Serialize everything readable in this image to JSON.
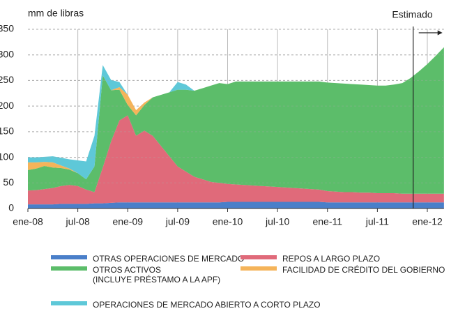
{
  "chart_data": {
    "type": "stacked_area",
    "y_label": "mm de libras",
    "categories": [
      "ene-08",
      null,
      null,
      null,
      null,
      null,
      "jul-08",
      null,
      null,
      null,
      null,
      null,
      "ene-09",
      null,
      null,
      null,
      null,
      null,
      "jul-09",
      null,
      null,
      null,
      null,
      null,
      "ene-10",
      null,
      null,
      null,
      null,
      null,
      "jul-10",
      null,
      null,
      null,
      null,
      null,
      "ene-11",
      null,
      null,
      null,
      null,
      null,
      "jul-11",
      null,
      null,
      null,
      null,
      null,
      "ene-12",
      null,
      null
    ],
    "ylim": [
      0,
      350
    ],
    "yticks": [
      0,
      50,
      100,
      150,
      200,
      250,
      300,
      350
    ],
    "grid": true,
    "annotation": {
      "text": "Estimado",
      "x": 46.3
    },
    "series": [
      {
        "name": "OTRAS OPERACIONES DE MERCADO",
        "color": "#4a7fc9",
        "values": [
          8,
          8,
          8,
          8,
          9,
          9,
          9,
          9,
          10,
          10,
          11,
          12,
          12,
          12,
          12,
          12,
          12,
          12,
          12,
          12,
          12,
          12,
          12,
          12,
          13,
          13,
          13,
          13,
          13,
          13,
          13,
          13,
          13,
          13,
          13,
          13,
          12,
          12,
          12,
          12,
          12,
          12,
          12,
          12,
          12,
          12,
          12,
          12,
          12,
          12,
          12
        ]
      },
      {
        "name": "REPOS A LARGO PLAZO",
        "color": "#e06a7a",
        "values": [
          27,
          28,
          30,
          32,
          35,
          37,
          35,
          28,
          22,
          70,
          120,
          160,
          170,
          130,
          140,
          130,
          110,
          90,
          70,
          60,
          50,
          45,
          40,
          38,
          35,
          34,
          33,
          32,
          31,
          30,
          29,
          28,
          27,
          26,
          25,
          24,
          22,
          21,
          20,
          20,
          19,
          19,
          18,
          18,
          18,
          17,
          17,
          17,
          17,
          17,
          17
        ]
      },
      {
        "name": "OTROS ACTIVOS\n(INCLUYE PRÉSTAMO A LA APF)",
        "color": "#5cbd6a",
        "values": [
          40,
          42,
          45,
          40,
          35,
          30,
          25,
          20,
          50,
          180,
          100,
          60,
          20,
          40,
          50,
          75,
          100,
          125,
          150,
          160,
          168,
          178,
          188,
          195,
          195,
          201,
          202,
          203,
          204,
          205,
          206,
          207,
          208,
          209,
          210,
          211,
          212,
          212,
          212,
          211,
          211,
          210,
          210,
          210,
          212,
          216,
          226,
          239,
          253,
          269,
          286
        ]
      },
      {
        "name": "FACILIDAD DE CRÉDITO DEL GOBIERNO",
        "color": "#f5b45a",
        "values": [
          15,
          12,
          8,
          10,
          5,
          2,
          0,
          0,
          0,
          0,
          0,
          5,
          20,
          10,
          5,
          0,
          0,
          0,
          0,
          0,
          0,
          0,
          0,
          0,
          0,
          0,
          0,
          0,
          0,
          0,
          0,
          0,
          0,
          0,
          0,
          0,
          0,
          0,
          0,
          0,
          0,
          0,
          0,
          0,
          0,
          0,
          0,
          0,
          0,
          0,
          0
        ]
      },
      {
        "name": "OPERACIONES DE MERCADO ABIERTO A CORTO PLAZO",
        "color": "#5ec8d8",
        "values": [
          10,
          10,
          10,
          12,
          15,
          18,
          25,
          35,
          60,
          20,
          20,
          10,
          0,
          0,
          0,
          0,
          0,
          0,
          15,
          10,
          0,
          0,
          0,
          0,
          0,
          0,
          0,
          0,
          0,
          0,
          0,
          0,
          0,
          0,
          0,
          0,
          0,
          0,
          0,
          0,
          0,
          0,
          0,
          0,
          0,
          0,
          0,
          0,
          0,
          0,
          0
        ]
      }
    ]
  }
}
